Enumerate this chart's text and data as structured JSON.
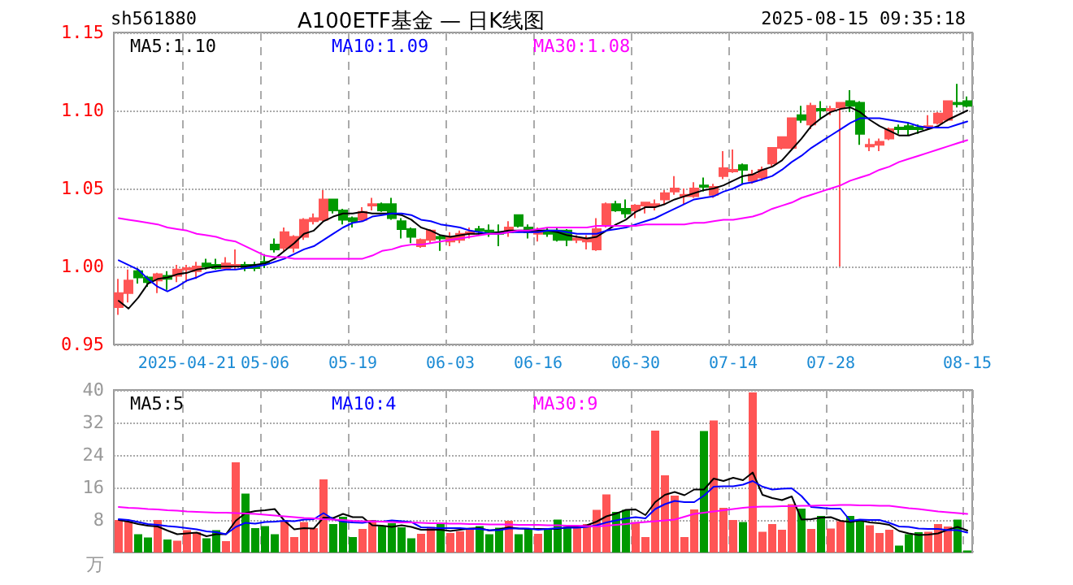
{
  "chart_data": [
    {
      "type": "candlestick",
      "title": "A100ETF基金 — 日K线图",
      "annotations": [
        "sh561880",
        "2025-08-15 09:35:18"
      ],
      "categories": [
        null,
        null,
        null,
        null,
        null,
        null,
        null,
        "2025-04-21",
        null,
        null,
        null,
        null,
        null,
        null,
        null,
        "05-06",
        null,
        null,
        null,
        null,
        null,
        null,
        null,
        null,
        "05-19",
        null,
        null,
        null,
        null,
        null,
        null,
        null,
        null,
        null,
        "06-03",
        null,
        null,
        null,
        null,
        null,
        null,
        null,
        null,
        "06-16",
        null,
        null,
        null,
        null,
        null,
        null,
        null,
        null,
        null,
        "06-30",
        null,
        null,
        null,
        null,
        null,
        null,
        null,
        null,
        null,
        "07-14",
        null,
        null,
        null,
        null,
        null,
        null,
        null,
        null,
        null,
        "07-28",
        null,
        null,
        null,
        null,
        null,
        null,
        null,
        null,
        null,
        null,
        null,
        null,
        null,
        "08-15"
      ],
      "ohlc": [
        [
          0.974,
          0.992,
          0.969,
          0.983
        ],
        [
          0.983,
          0.998,
          0.977,
          0.991
        ],
        [
          0.997,
          0.999,
          0.989,
          0.993
        ],
        [
          0.993,
          0.994,
          0.987,
          0.99
        ],
        [
          0.991,
          0.996,
          0.983,
          0.995
        ],
        [
          0.994,
          0.997,
          0.985,
          0.992
        ],
        [
          0.994,
          1.001,
          0.99,
          0.998
        ],
        [
          0.998,
          1.001,
          0.99,
          0.999
        ],
        [
          0.997,
          1.003,
          0.992,
          1.0
        ],
        [
          1.002,
          1.005,
          0.998,
          1.0
        ],
        [
          1.001,
          1.005,
          0.998,
          0.999
        ],
        [
          0.999,
          1.006,
          0.998,
          1.002
        ],
        [
          1.0,
          1.011,
          0.998,
          1.001
        ],
        [
          1.001,
          1.003,
          0.997,
          0.999
        ],
        [
          1.001,
          1.003,
          0.997,
          0.999
        ],
        [
          1.003,
          1.008,
          0.999,
          1.002
        ],
        [
          1.014,
          1.018,
          1.009,
          1.011
        ],
        [
          1.012,
          1.025,
          1.01,
          1.022
        ],
        [
          1.012,
          1.02,
          1.009,
          1.019
        ],
        [
          1.019,
          1.031,
          1.017,
          1.03
        ],
        [
          1.029,
          1.034,
          1.027,
          1.031
        ],
        [
          1.03,
          1.049,
          1.029,
          1.043
        ],
        [
          1.043,
          1.043,
          1.034,
          1.036
        ],
        [
          1.036,
          1.037,
          1.027,
          1.03
        ],
        [
          1.031,
          1.032,
          1.025,
          1.029
        ],
        [
          1.03,
          1.038,
          1.029,
          1.035
        ],
        [
          1.039,
          1.044,
          1.036,
          1.04
        ],
        [
          1.04,
          1.041,
          1.035,
          1.036
        ],
        [
          1.04,
          1.044,
          1.03,
          1.031
        ],
        [
          1.029,
          1.031,
          1.018,
          1.024
        ],
        [
          1.024,
          1.025,
          1.015,
          1.019
        ],
        [
          1.013,
          1.018,
          1.012,
          1.017
        ],
        [
          1.017,
          1.024,
          1.015,
          1.023
        ],
        [
          1.019,
          1.02,
          1.01,
          1.018
        ],
        [
          1.016,
          1.022,
          1.013,
          1.019
        ],
        [
          1.017,
          1.023,
          1.015,
          1.021
        ],
        [
          1.021,
          1.025,
          1.018,
          1.022
        ],
        [
          1.024,
          1.026,
          1.02,
          1.023
        ],
        [
          1.023,
          1.027,
          1.019,
          1.022
        ],
        [
          1.022,
          1.027,
          1.013,
          1.021
        ],
        [
          1.022,
          1.029,
          1.019,
          1.025
        ],
        [
          1.033,
          1.033,
          1.025,
          1.026
        ],
        [
          1.025,
          1.027,
          1.018,
          1.022
        ],
        [
          1.021,
          1.025,
          1.016,
          1.023
        ],
        [
          1.023,
          1.025,
          1.019,
          1.021
        ],
        [
          1.023,
          1.025,
          1.016,
          1.017
        ],
        [
          1.023,
          1.024,
          1.013,
          1.017
        ],
        [
          1.017,
          1.02,
          1.015,
          1.018
        ],
        [
          1.016,
          1.02,
          1.011,
          1.018
        ],
        [
          1.011,
          1.031,
          1.01,
          1.024
        ],
        [
          1.026,
          1.041,
          1.025,
          1.04
        ],
        [
          1.04,
          1.042,
          1.035,
          1.036
        ],
        [
          1.037,
          1.043,
          1.031,
          1.034
        ],
        [
          1.036,
          1.04,
          1.031,
          1.039
        ],
        [
          1.039,
          1.041,
          1.034,
          1.041
        ],
        [
          1.039,
          1.043,
          1.036,
          1.04
        ],
        [
          1.043,
          1.049,
          1.04,
          1.047
        ],
        [
          1.048,
          1.058,
          1.046,
          1.05
        ],
        [
          1.045,
          1.05,
          1.04,
          1.046
        ],
        [
          1.045,
          1.054,
          1.044,
          1.05
        ],
        [
          1.052,
          1.057,
          1.048,
          1.051
        ],
        [
          1.046,
          1.053,
          1.044,
          1.051
        ],
        [
          1.058,
          1.074,
          1.056,
          1.063
        ],
        [
          1.061,
          1.075,
          1.06,
          1.062
        ],
        [
          1.065,
          1.066,
          1.053,
          1.062
        ],
        [
          1.055,
          1.062,
          1.053,
          1.059
        ],
        [
          1.057,
          1.064,
          1.055,
          1.062
        ],
        [
          1.066,
          1.076,
          1.064,
          1.076
        ],
        [
          1.076,
          1.083,
          1.075,
          1.083
        ],
        [
          1.076,
          1.095,
          1.076,
          1.095
        ],
        [
          1.097,
          1.103,
          1.092,
          1.094
        ],
        [
          1.091,
          1.105,
          1.088,
          1.103
        ],
        [
          1.101,
          1.106,
          1.095,
          1.1
        ],
        [
          1.1,
          1.103,
          1.097,
          1.101
        ],
        [
          1.102,
          1.105,
          1.0,
          1.105
        ],
        [
          1.106,
          1.113,
          1.099,
          1.103
        ],
        [
          1.105,
          1.106,
          1.078,
          1.085
        ],
        [
          1.077,
          1.082,
          1.074,
          1.078
        ],
        [
          1.078,
          1.082,
          1.074,
          1.08
        ],
        [
          1.082,
          1.089,
          1.081,
          1.088
        ],
        [
          1.089,
          1.091,
          1.085,
          1.088
        ],
        [
          1.09,
          1.092,
          1.084,
          1.088
        ],
        [
          1.089,
          1.091,
          1.085,
          1.088
        ],
        [
          1.089,
          1.097,
          1.088,
          1.09
        ],
        [
          1.092,
          1.099,
          1.091,
          1.098
        ],
        [
          1.094,
          1.106,
          1.093,
          1.106
        ],
        [
          1.105,
          1.117,
          1.102,
          1.104
        ],
        [
          1.106,
          1.109,
          1.102,
          1.103
        ]
      ],
      "colors": [
        "#ff5555",
        "#ff5555",
        "#009900",
        "#009900",
        "#ff5555",
        "#009900",
        "#ff5555",
        "#ff5555",
        "#ff5555",
        "#009900",
        "#009900",
        "#ff5555",
        "#ff5555",
        "#009900",
        "#009900",
        "#009900",
        "#009900",
        "#ff5555",
        "#ff5555",
        "#ff5555",
        "#ff5555",
        "#ff5555",
        "#009900",
        "#009900",
        "#009900",
        "#ff5555",
        "#ff5555",
        "#009900",
        "#009900",
        "#009900",
        "#009900",
        "#ff5555",
        "#ff5555",
        "#009900",
        "#ff5555",
        "#ff5555",
        "#ff5555",
        "#009900",
        "#009900",
        "#009900",
        "#ff5555",
        "#009900",
        "#009900",
        "#ff5555",
        "#009900",
        "#009900",
        "#009900",
        "#ff5555",
        "#ff5555",
        "#ff5555",
        "#ff5555",
        "#009900",
        "#009900",
        "#ff5555",
        "#ff5555",
        "#ff5555",
        "#ff5555",
        "#ff5555",
        "#ff5555",
        "#ff5555",
        "#009900",
        "#ff5555",
        "#ff5555",
        "#ff5555",
        "#009900",
        "#ff5555",
        "#ff5555",
        "#ff5555",
        "#ff5555",
        "#ff5555",
        "#009900",
        "#ff5555",
        "#009900",
        "#ff5555",
        "#ff5555",
        "#009900",
        "#009900",
        "#ff5555",
        "#ff5555",
        "#ff5555",
        "#009900",
        "#009900",
        "#009900",
        "#ff5555",
        "#ff5555",
        "#ff5555",
        "#009900",
        "#009900"
      ],
      "series": [
        {
          "name": "MA5:1.10",
          "type": "line",
          "color": "#000000",
          "values": [
            0.978,
            0.973,
            0.98,
            0.989,
            0.992,
            0.993,
            0.995,
            0.996,
            0.998,
            0.999,
            1.0,
            1.0,
            1.0,
            1.0,
            1.001,
            1.002,
            1.005,
            1.01,
            1.015,
            1.021,
            1.023,
            1.029,
            1.032,
            1.034,
            1.034,
            1.035,
            1.034,
            1.034,
            1.034,
            1.033,
            1.03,
            1.025,
            1.023,
            1.02,
            1.019,
            1.02,
            1.021,
            1.021,
            1.021,
            1.022,
            1.023,
            1.023,
            1.023,
            1.023,
            1.023,
            1.022,
            1.02,
            1.019,
            1.018,
            1.019,
            1.023,
            1.027,
            1.03,
            1.035,
            1.038,
            1.038,
            1.04,
            1.043,
            1.045,
            1.047,
            1.049,
            1.05,
            1.052,
            1.055,
            1.058,
            1.059,
            1.062,
            1.064,
            1.068,
            1.075,
            1.082,
            1.09,
            1.095,
            1.099,
            1.101,
            1.102,
            1.099,
            1.094,
            1.09,
            1.087,
            1.084,
            1.084,
            1.086,
            1.088,
            1.09,
            1.094,
            1.097,
            1.1
          ]
        },
        {
          "name": "MA10:1.09",
          "type": "line",
          "color": "#0000ff",
          "values": [
            1.004,
            1.001,
            0.998,
            0.992,
            0.987,
            0.984,
            0.987,
            0.991,
            0.993,
            0.996,
            0.997,
            0.998,
            0.998,
            0.999,
            1.0,
            1.001,
            1.003,
            1.005,
            1.008,
            1.011,
            1.013,
            1.017,
            1.021,
            1.025,
            1.028,
            1.029,
            1.032,
            1.033,
            1.034,
            1.034,
            1.033,
            1.03,
            1.029,
            1.027,
            1.026,
            1.025,
            1.023,
            1.022,
            1.021,
            1.021,
            1.022,
            1.022,
            1.022,
            1.022,
            1.023,
            1.023,
            1.022,
            1.021,
            1.021,
            1.021,
            1.023,
            1.024,
            1.025,
            1.027,
            1.029,
            1.031,
            1.034,
            1.037,
            1.04,
            1.043,
            1.044,
            1.045,
            1.048,
            1.05,
            1.053,
            1.054,
            1.056,
            1.058,
            1.062,
            1.067,
            1.071,
            1.076,
            1.08,
            1.084,
            1.088,
            1.092,
            1.095,
            1.095,
            1.095,
            1.094,
            1.093,
            1.092,
            1.09,
            1.089,
            1.089,
            1.089,
            1.091,
            1.093
          ]
        },
        {
          "name": "MA30:1.08",
          "type": "line",
          "color": "#ff00ff",
          "values": [
            1.031,
            1.03,
            1.029,
            1.028,
            1.027,
            1.025,
            1.024,
            1.023,
            1.021,
            1.02,
            1.019,
            1.017,
            1.016,
            1.013,
            1.01,
            1.007,
            1.006,
            1.006,
            1.005,
            1.005,
            1.005,
            1.005,
            1.005,
            1.005,
            1.005,
            1.005,
            1.007,
            1.01,
            1.011,
            1.013,
            1.014,
            1.014,
            1.015,
            1.016,
            1.017,
            1.018,
            1.019,
            1.02,
            1.021,
            1.021,
            1.022,
            1.023,
            1.023,
            1.024,
            1.025,
            1.025,
            1.025,
            1.025,
            1.025,
            1.026,
            1.026,
            1.026,
            1.026,
            1.026,
            1.027,
            1.027,
            1.027,
            1.027,
            1.027,
            1.028,
            1.028,
            1.029,
            1.03,
            1.03,
            1.031,
            1.032,
            1.034,
            1.037,
            1.039,
            1.041,
            1.044,
            1.046,
            1.048,
            1.05,
            1.052,
            1.055,
            1.057,
            1.059,
            1.062,
            1.064,
            1.067,
            1.069,
            1.071,
            1.073,
            1.075,
            1.077,
            1.079,
            1.081
          ]
        }
      ],
      "ylim": [
        0.95,
        1.15
      ],
      "yticks": [
        0.95,
        {
          "value": 1,
          "label": "1.00"
        },
        1.05,
        {
          "value": 1.1,
          "label": "1.10"
        },
        1.15
      ],
      "grid": true,
      "legend": "top left",
      "marker": "none"
    },
    {
      "type": "bar",
      "ylabel": "万",
      "categories": [
        null,
        null,
        null,
        null,
        null,
        null,
        null,
        null,
        null,
        null,
        null,
        null,
        null,
        null,
        null,
        null,
        null,
        null,
        null,
        null,
        null,
        null,
        null,
        null,
        null,
        null,
        null,
        null,
        null,
        null,
        null,
        null,
        null,
        null,
        null,
        null,
        null,
        null,
        null,
        null,
        null,
        null,
        null,
        null,
        null,
        null,
        null,
        null,
        null,
        null,
        null,
        null,
        null,
        null,
        null,
        null,
        null,
        null,
        null,
        null,
        null,
        null,
        null,
        null,
        null,
        null,
        null,
        null,
        null,
        null,
        null,
        null,
        null,
        null,
        null,
        null,
        null,
        null,
        null,
        null,
        null,
        null,
        null,
        null,
        null,
        null,
        null,
        null
      ],
      "series": [
        {
          "colors": [
            "#ff5555",
            "#ff5555",
            "#009900",
            "#009900",
            "#ff5555",
            "#009900",
            "#ff5555",
            "#ff5555",
            "#ff5555",
            "#009900",
            "#009900",
            "#ff5555",
            "#ff5555",
            "#009900",
            "#009900",
            "#009900",
            "#009900",
            "#ff5555",
            "#ff5555",
            "#ff5555",
            "#ff5555",
            "#ff5555",
            "#009900",
            "#009900",
            "#009900",
            "#ff5555",
            "#ff5555",
            "#009900",
            "#009900",
            "#009900",
            "#009900",
            "#ff5555",
            "#ff5555",
            "#009900",
            "#ff5555",
            "#ff5555",
            "#ff5555",
            "#009900",
            "#009900",
            "#009900",
            "#ff5555",
            "#009900",
            "#009900",
            "#ff5555",
            "#009900",
            "#009900",
            "#009900",
            "#ff5555",
            "#ff5555",
            "#ff5555",
            "#ff5555",
            "#009900",
            "#009900",
            "#ff5555",
            "#ff5555",
            "#ff5555",
            "#ff5555",
            "#ff5555",
            "#ff5555",
            "#ff5555",
            "#009900",
            "#ff5555",
            "#ff5555",
            "#ff5555",
            "#009900",
            "#ff5555",
            "#ff5555",
            "#ff5555",
            "#ff5555",
            "#ff5555",
            "#009900",
            "#ff5555",
            "#009900",
            "#ff5555",
            "#ff5555",
            "#009900",
            "#009900",
            "#ff5555",
            "#ff5555",
            "#ff5555",
            "#009900",
            "#009900",
            "#009900",
            "#ff5555",
            "#ff5555",
            "#ff5555",
            "#009900",
            "#009900"
          ],
          "values": [
            8,
            7.7,
            4.5,
            3.7,
            8,
            3.2,
            2.9,
            5.5,
            5,
            3.5,
            5.5,
            2.8,
            22.2,
            14.5,
            6,
            6.5,
            4.5,
            7.6,
            3.8,
            7.5,
            6,
            18,
            7,
            8.8,
            3.8,
            5.8,
            8,
            6.5,
            7.2,
            6.2,
            3.5,
            4.6,
            6.3,
            7.3,
            4.8,
            5.2,
            6,
            6.5,
            4.5,
            6.1,
            7.8,
            4.5,
            6,
            4.6,
            6,
            8.1,
            6.3,
            6.3,
            7,
            10.5,
            14.3,
            10,
            10.5,
            7.5,
            3.8,
            30,
            19,
            14,
            3.8,
            10.6,
            29.9,
            32.5,
            11,
            8,
            7.5,
            39.4,
            5.1,
            7,
            5.6,
            11.9,
            10.8,
            5.8,
            9,
            5.9,
            7.7,
            9,
            7.8,
            6.7,
            4.8,
            5.6,
            1.7,
            4.5,
            5,
            5.1,
            7,
            6.4,
            8.1,
            0.5
          ]
        },
        {
          "name": "MA5:5",
          "type": "line",
          "color": "#000000",
          "values": [
            8.0,
            7.6,
            7.0,
            6.6,
            6.4,
            5.4,
            4.5,
            4.7,
            4.9,
            4.0,
            4.5,
            4.5,
            7.8,
            9.7,
            10.2,
            10.4,
            10.7,
            7.8,
            5.7,
            6.0,
            5.9,
            8.6,
            8.5,
            9.5,
            8.7,
            8.7,
            6.7,
            6.6,
            6.3,
            6.7,
            6.3,
            5.6,
            5.6,
            5.6,
            5.3,
            5.6,
            5.9,
            6.0,
            5.4,
            5.7,
            6.2,
            5.9,
            5.8,
            5.8,
            5.8,
            5.8,
            6.2,
            6.3,
            6.7,
            7.6,
            8.9,
            9.6,
            10.5,
            10.6,
            9.2,
            12.4,
            14.2,
            14.9,
            14.1,
            15.5,
            15.5,
            18.2,
            17.6,
            18.4,
            17.8,
            19.7,
            14.2,
            13.4,
            12.9,
            13.8,
            8.1,
            8.2,
            8.6,
            8.7,
            7.8,
            7.5,
            7.9,
            7.4,
            7.2,
            6.8,
            5.3,
            4.7,
            4.3,
            4.4,
            4.7,
            5.6,
            6.3,
            5.4
          ]
        },
        {
          "name": "MA10:4",
          "type": "line",
          "color": "#0000ff",
          "values": [
            8.2,
            8.0,
            7.5,
            7.0,
            6.8,
            6.5,
            6.3,
            6.0,
            5.7,
            5.2,
            5.0,
            4.5,
            6.3,
            7.3,
            7.1,
            7.5,
            7.6,
            7.8,
            7.7,
            8.1,
            8.2,
            9.7,
            8.2,
            7.6,
            7.4,
            7.3,
            7.7,
            7.6,
            7.9,
            7.7,
            7.5,
            6.2,
            6.1,
            6.0,
            6.0,
            6.0,
            5.8,
            5.8,
            5.5,
            5.5,
            5.9,
            5.9,
            5.9,
            5.6,
            5.8,
            6.0,
            6.1,
            6.1,
            6.3,
            6.7,
            7.4,
            7.9,
            8.4,
            8.7,
            8.4,
            10.7,
            11.9,
            12.7,
            12.4,
            12.4,
            14.0,
            16.2,
            16.3,
            16.3,
            16.7,
            17.6,
            16.2,
            15.5,
            15.7,
            15.8,
            13.9,
            11.2,
            11.0,
            10.8,
            10.8,
            7.8,
            8.1,
            8.0,
            8.0,
            7.3,
            6.4,
            6.3,
            5.9,
            5.8,
            5.8,
            5.5,
            5.5,
            4.9
          ]
        },
        {
          "name": "MA30:9",
          "type": "line",
          "color": "#ff00ff",
          "values": [
            11.2,
            11.0,
            10.9,
            10.7,
            10.6,
            10.4,
            10.3,
            10.1,
            10.0,
            9.9,
            9.8,
            9.8,
            9.7,
            9.6,
            9.5,
            9.3,
            9.1,
            8.9,
            8.7,
            8.5,
            8.4,
            8.2,
            8.1,
            8.0,
            7.8,
            7.7,
            7.6,
            7.6,
            7.5,
            7.4,
            7.4,
            7.3,
            7.2,
            7.2,
            7.1,
            7.1,
            7.0,
            7.0,
            6.9,
            6.9,
            6.9,
            6.8,
            6.8,
            6.8,
            6.7,
            6.7,
            6.6,
            6.6,
            6.5,
            6.4,
            6.6,
            6.8,
            7.0,
            7.3,
            7.5,
            7.7,
            7.9,
            8.1,
            8.8,
            9.5,
            9.8,
            10.1,
            10.4,
            10.7,
            11.0,
            11.2,
            11.3,
            11.3,
            11.4,
            11.4,
            11.5,
            11.5,
            11.6,
            11.6,
            11.7,
            11.7,
            11.6,
            11.6,
            11.5,
            11.5,
            11.2,
            10.9,
            10.7,
            10.4,
            10.1,
            9.9,
            9.7,
            9.5
          ]
        }
      ],
      "ylim": [
        0,
        40
      ],
      "yticks": [
        8,
        16,
        24,
        32,
        40
      ],
      "grid": true,
      "legend": "top left",
      "marker": "none",
      "tick_labels": "y"
    }
  ]
}
